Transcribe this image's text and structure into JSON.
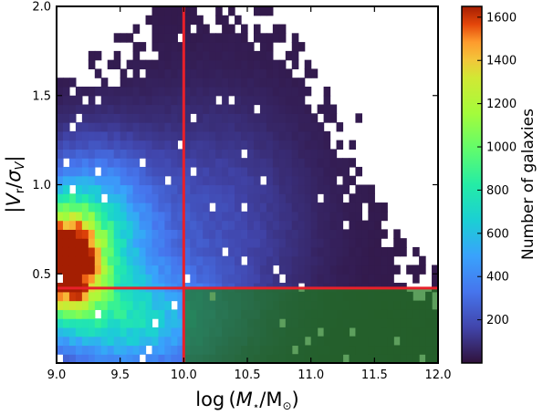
{
  "chart_data": {
    "type": "heatmap",
    "title": "",
    "xlabel": "log (M⋆/M⊙)",
    "ylabel": "|Vᵣ/σᵥ|",
    "xlim": [
      9.0,
      12.0
    ],
    "ylim": [
      0.0,
      2.0
    ],
    "x_ticks": [
      "9.0",
      "9.5",
      "10.0",
      "10.5",
      "11.0",
      "11.5",
      "12.0"
    ],
    "y_ticks": [
      "0.5",
      "1.0",
      "1.5",
      "2.0"
    ],
    "colorbar": {
      "label": "Number of galaxies",
      "range": [
        0,
        1650
      ],
      "ticks": [
        "200",
        "400",
        "600",
        "800",
        "1000",
        "1200",
        "1400",
        "1600"
      ],
      "colormap": "turbo"
    },
    "reference_lines": {
      "x": 10.0,
      "y": 0.42,
      "color": "#e8202a"
    },
    "highlight_region": {
      "x_range": [
        10.0,
        12.0
      ],
      "y_range": [
        0.0,
        0.42
      ],
      "color": "#1f7a1f"
    },
    "peak": {
      "x": 9.05,
      "y": 0.55,
      "count": 1650
    },
    "grid": false,
    "legend": "none"
  }
}
